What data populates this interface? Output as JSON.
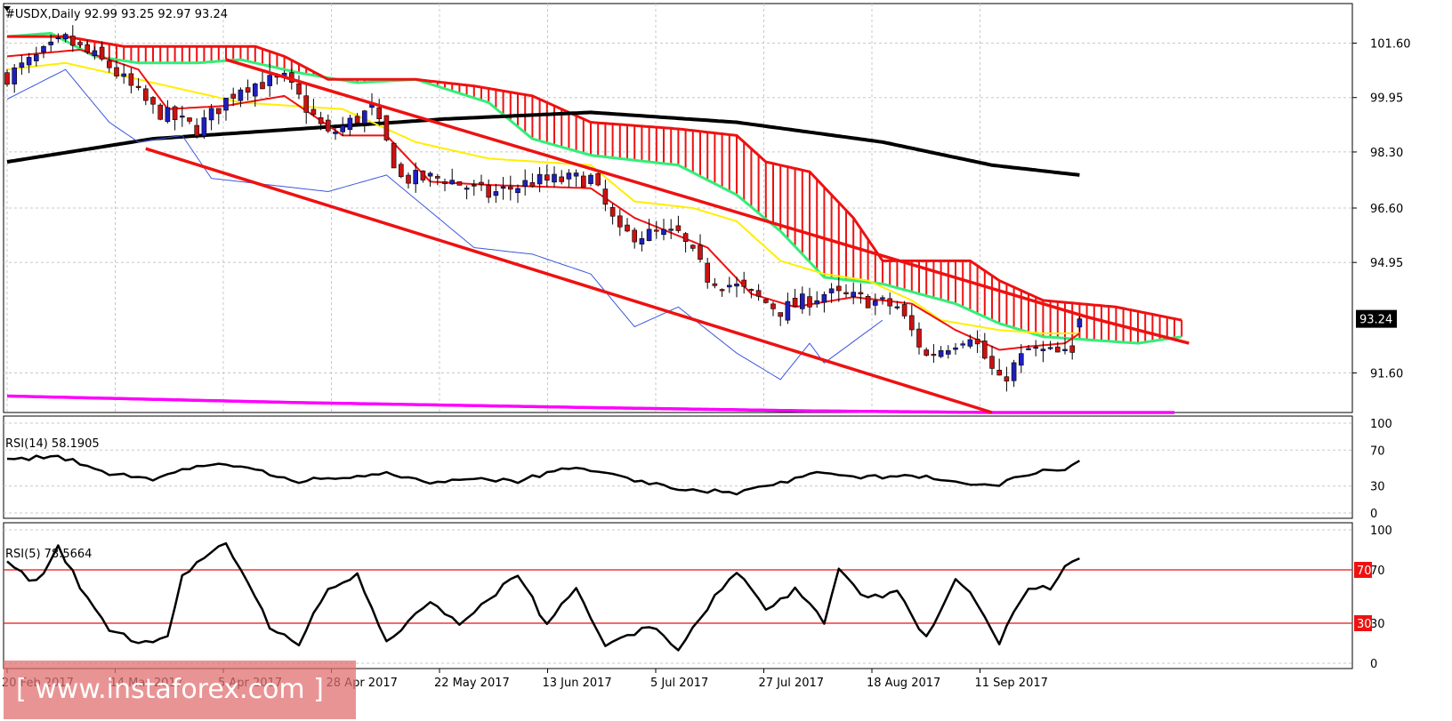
{
  "window": {
    "symbol_header": "#USDX,Daily  92.99 93.25 92.97 93.24",
    "watermark": "[ www.instaforex.com ]"
  },
  "colors": {
    "bull_candle": "#1f1fbf",
    "bear_candle": "#cc1111",
    "tenkan": "#ee1111",
    "kijun": "#ffee00",
    "chikou": "#3b57e0",
    "senkou_a": "#33ee77",
    "senkou_b": "#ee1111",
    "cloud_bear": "#ee1111",
    "cloud_bull": "#33ee77",
    "ma_black": "#000000",
    "ma_magenta": "#ff00ff",
    "channel": "#ee1111",
    "rsi_line": "#000000",
    "rsi_levels": "#ee1111"
  },
  "chart_data": [
    {
      "type": "candlestick",
      "title": "#USDX,Daily",
      "ohlc_last": {
        "open": 92.99,
        "high": 93.25,
        "low": 92.97,
        "close": 93.24
      },
      "price_tag": "93.24",
      "x_tick_labels": [
        "20 Feb 2017",
        "14 Mar 2017",
        "5 Apr 2017",
        "28 Apr 2017",
        "22 May 2017",
        "13 Jun 2017",
        "5 Jul 2017",
        "27 Jul 2017",
        "18 Aug 2017",
        "11 Sep 2017"
      ],
      "y_tick_labels": [
        "101.60",
        "99.95",
        "98.30",
        "96.60",
        "94.95",
        "93.24",
        "91.60"
      ],
      "ylim": [
        90.4,
        102.8
      ],
      "bars": 148,
      "close_anchors": [
        [
          0,
          100.6
        ],
        [
          8,
          101.7
        ],
        [
          14,
          100.9
        ],
        [
          20,
          99.6
        ],
        [
          26,
          99.0
        ],
        [
          32,
          100.3
        ],
        [
          38,
          100.5
        ],
        [
          44,
          98.8
        ],
        [
          50,
          99.6
        ],
        [
          54,
          97.5
        ],
        [
          60,
          97.5
        ],
        [
          66,
          97.0
        ],
        [
          72,
          97.4
        ],
        [
          80,
          97.5
        ],
        [
          84,
          95.8
        ],
        [
          92,
          95.8
        ],
        [
          96,
          94.5
        ],
        [
          100,
          94.2
        ],
        [
          106,
          93.5
        ],
        [
          112,
          94.0
        ],
        [
          118,
          93.8
        ],
        [
          122,
          93.6
        ],
        [
          126,
          92.1
        ],
        [
          132,
          92.8
        ],
        [
          136,
          91.3
        ],
        [
          140,
          92.3
        ],
        [
          146,
          92.1
        ],
        [
          147,
          93.24
        ]
      ],
      "tenkan_anchors": [
        [
          0,
          101.2
        ],
        [
          10,
          101.4
        ],
        [
          18,
          100.8
        ],
        [
          22,
          99.6
        ],
        [
          30,
          99.7
        ],
        [
          38,
          100.0
        ],
        [
          46,
          98.8
        ],
        [
          52,
          98.8
        ],
        [
          58,
          97.4
        ],
        [
          66,
          97.3
        ],
        [
          80,
          97.2
        ],
        [
          86,
          96.3
        ],
        [
          96,
          95.4
        ],
        [
          102,
          94.0
        ],
        [
          108,
          93.6
        ],
        [
          116,
          93.9
        ],
        [
          124,
          93.7
        ],
        [
          130,
          92.9
        ],
        [
          136,
          92.3
        ],
        [
          140,
          92.4
        ],
        [
          145,
          92.5
        ],
        [
          147,
          92.8
        ]
      ],
      "kijun_anchors": [
        [
          0,
          100.8
        ],
        [
          8,
          101.0
        ],
        [
          20,
          100.4
        ],
        [
          32,
          99.8
        ],
        [
          46,
          99.6
        ],
        [
          56,
          98.6
        ],
        [
          66,
          98.1
        ],
        [
          80,
          97.9
        ],
        [
          86,
          96.8
        ],
        [
          94,
          96.6
        ],
        [
          100,
          96.2
        ],
        [
          106,
          95.0
        ],
        [
          112,
          94.6
        ],
        [
          118,
          94.4
        ],
        [
          124,
          93.8
        ],
        [
          128,
          93.2
        ],
        [
          136,
          92.9
        ],
        [
          142,
          92.8
        ],
        [
          147,
          92.8
        ]
      ],
      "chikou_anchors": [
        [
          0,
          99.9
        ],
        [
          8,
          100.8
        ],
        [
          14,
          99.2
        ],
        [
          18,
          98.6
        ],
        [
          24,
          98.8
        ],
        [
          28,
          97.5
        ],
        [
          36,
          97.3
        ],
        [
          44,
          97.1
        ],
        [
          52,
          97.6
        ],
        [
          58,
          96.5
        ],
        [
          64,
          95.4
        ],
        [
          72,
          95.2
        ],
        [
          80,
          94.6
        ],
        [
          86,
          93.0
        ],
        [
          92,
          93.6
        ],
        [
          100,
          92.2
        ],
        [
          106,
          91.4
        ],
        [
          110,
          92.5
        ],
        [
          112,
          91.9
        ],
        [
          120,
          93.2
        ]
      ],
      "senkou_a_anchors": [
        [
          0,
          101.8
        ],
        [
          6,
          101.9
        ],
        [
          12,
          101.2
        ],
        [
          18,
          101.0
        ],
        [
          26,
          101.0
        ],
        [
          32,
          101.1
        ],
        [
          40,
          100.7
        ],
        [
          48,
          100.4
        ],
        [
          56,
          100.5
        ],
        [
          66,
          99.8
        ],
        [
          72,
          98.7
        ],
        [
          80,
          98.2
        ],
        [
          92,
          97.9
        ],
        [
          100,
          97.0
        ],
        [
          106,
          95.9
        ],
        [
          112,
          94.5
        ],
        [
          120,
          94.3
        ],
        [
          130,
          93.7
        ],
        [
          136,
          93.1
        ],
        [
          142,
          92.7
        ],
        [
          155,
          92.5
        ],
        [
          161,
          92.7
        ]
      ],
      "senkou_b_anchors": [
        [
          0,
          101.8
        ],
        [
          8,
          101.8
        ],
        [
          16,
          101.5
        ],
        [
          26,
          101.5
        ],
        [
          34,
          101.5
        ],
        [
          38,
          101.2
        ],
        [
          44,
          100.5
        ],
        [
          56,
          100.5
        ],
        [
          64,
          100.3
        ],
        [
          72,
          100.0
        ],
        [
          80,
          99.2
        ],
        [
          92,
          99.0
        ],
        [
          100,
          98.8
        ],
        [
          104,
          98.0
        ],
        [
          110,
          97.7
        ],
        [
          116,
          96.3
        ],
        [
          120,
          95.0
        ],
        [
          132,
          95.0
        ],
        [
          136,
          94.4
        ],
        [
          142,
          93.8
        ],
        [
          152,
          93.6
        ],
        [
          161,
          93.2
        ]
      ],
      "ma_black_anchors": [
        [
          0,
          98.0
        ],
        [
          20,
          98.7
        ],
        [
          40,
          99.0
        ],
        [
          60,
          99.3
        ],
        [
          80,
          99.5
        ],
        [
          100,
          99.2
        ],
        [
          120,
          98.6
        ],
        [
          135,
          97.9
        ],
        [
          147,
          97.6
        ]
      ],
      "ma_magenta_anchors": [
        [
          0,
          90.9
        ],
        [
          40,
          90.7
        ],
        [
          80,
          90.55
        ],
        [
          110,
          90.45
        ],
        [
          135,
          90.4
        ],
        [
          160,
          90.4
        ]
      ],
      "channel_upper": [
        [
          30,
          101.1
        ],
        [
          148,
          93.3
        ],
        [
          162,
          92.5
        ]
      ],
      "channel_lower": [
        [
          19,
          98.4
        ],
        [
          135,
          90.4
        ]
      ]
    },
    {
      "type": "line",
      "title": "RSI(14) 58.1905",
      "y_tick_labels": [
        "100",
        "70",
        "30",
        "0"
      ],
      "ylim": [
        0,
        100
      ],
      "levels": [
        30,
        70
      ],
      "anchors": [
        [
          0,
          58
        ],
        [
          6,
          63
        ],
        [
          10,
          56
        ],
        [
          14,
          44
        ],
        [
          20,
          38
        ],
        [
          24,
          48
        ],
        [
          30,
          54
        ],
        [
          36,
          44
        ],
        [
          40,
          36
        ],
        [
          48,
          40
        ],
        [
          52,
          47
        ],
        [
          58,
          32
        ],
        [
          64,
          38
        ],
        [
          70,
          36
        ],
        [
          78,
          52
        ],
        [
          84,
          40
        ],
        [
          92,
          26
        ],
        [
          100,
          23
        ],
        [
          104,
          30
        ],
        [
          112,
          45
        ],
        [
          118,
          40
        ],
        [
          124,
          42
        ],
        [
          130,
          34
        ],
        [
          136,
          32
        ],
        [
          140,
          44
        ],
        [
          145,
          50
        ],
        [
          147,
          58.19
        ]
      ]
    },
    {
      "type": "line",
      "title": "RSI(5) 78.5664",
      "y_tick_labels": [
        "100",
        "70",
        "30",
        "0"
      ],
      "level_labels": [
        "70",
        "30"
      ],
      "ylim": [
        0,
        100
      ],
      "levels": [
        30,
        70
      ],
      "anchors": [
        [
          0,
          74
        ],
        [
          4,
          60
        ],
        [
          7,
          86
        ],
        [
          10,
          58
        ],
        [
          14,
          26
        ],
        [
          18,
          15
        ],
        [
          22,
          20
        ],
        [
          24,
          65
        ],
        [
          30,
          90
        ],
        [
          36,
          28
        ],
        [
          40,
          16
        ],
        [
          44,
          55
        ],
        [
          48,
          66
        ],
        [
          52,
          18
        ],
        [
          58,
          45
        ],
        [
          62,
          28
        ],
        [
          70,
          68
        ],
        [
          74,
          28
        ],
        [
          78,
          58
        ],
        [
          82,
          12
        ],
        [
          88,
          28
        ],
        [
          92,
          10
        ],
        [
          96,
          42
        ],
        [
          100,
          70
        ],
        [
          104,
          40
        ],
        [
          108,
          55
        ],
        [
          112,
          30
        ],
        [
          114,
          72
        ],
        [
          118,
          48
        ],
        [
          122,
          55
        ],
        [
          126,
          18
        ],
        [
          130,
          62
        ],
        [
          132,
          55
        ],
        [
          136,
          16
        ],
        [
          140,
          58
        ],
        [
          143,
          55
        ],
        [
          145,
          75
        ],
        [
          147,
          78.57
        ]
      ]
    }
  ]
}
